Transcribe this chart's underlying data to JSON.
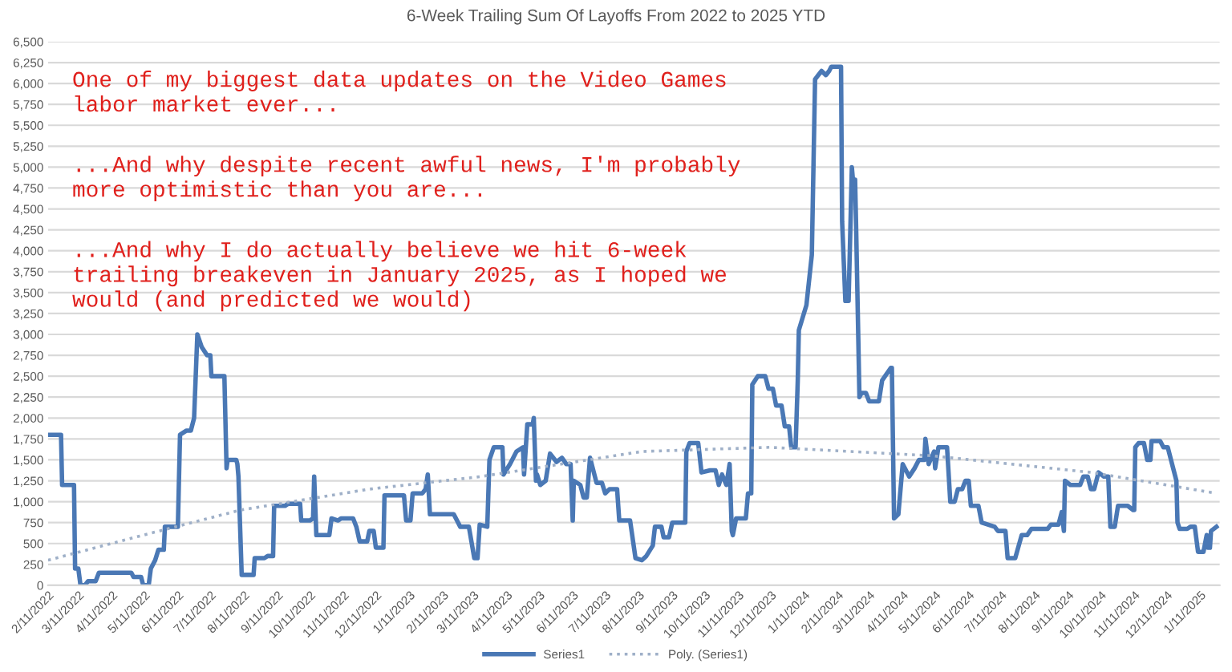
{
  "chart_data": {
    "type": "line",
    "title": "6-Week Trailing Sum Of Layoffs From 2022 to 2025 YTD",
    "annotations": [
      "One of my biggest data updates on the Video Games\nlabor market ever...",
      "...And why despite recent awful news, I'm probably\nmore optimistic than you are...",
      "...And why I do actually believe we hit 6-week\ntrailing breakeven in January 2025, as I hoped we\nwould (and predicted we would)"
    ],
    "series": [
      {
        "name": "Series1",
        "color": "#4a78b5",
        "line_style": "solid",
        "x": [
          "2022-02-11",
          "2022-02-23",
          "2022-02-24",
          "2022-03-07",
          "2022-03-08",
          "2022-03-11",
          "2022-03-13",
          "2022-03-17",
          "2022-03-20",
          "2022-03-27",
          "2022-03-30",
          "2022-04-29",
          "2022-05-01",
          "2022-05-08",
          "2022-05-10",
          "2022-05-15",
          "2022-05-17",
          "2022-05-21",
          "2022-05-24",
          "2022-05-29",
          "2022-05-30",
          "2022-06-11",
          "2022-06-13",
          "2022-06-19",
          "2022-06-23",
          "2022-06-26",
          "2022-06-29",
          "2022-07-03",
          "2022-07-08",
          "2022-07-11",
          "2022-07-12",
          "2022-07-24",
          "2022-07-26",
          "2022-07-27",
          "2022-08-04",
          "2022-08-05",
          "2022-08-06",
          "2022-08-09",
          "2022-08-20",
          "2022-08-21",
          "2022-08-30",
          "2022-09-02",
          "2022-09-07",
          "2022-09-08",
          "2022-09-18",
          "2022-09-21",
          "2022-10-02",
          "2022-10-03",
          "2022-10-11",
          "2022-10-14",
          "2022-10-15",
          "2022-10-17",
          "2022-10-29",
          "2022-10-31",
          "2022-11-06",
          "2022-11-09",
          "2022-11-20",
          "2022-11-23",
          "2022-11-26",
          "2022-12-03",
          "2022-12-05",
          "2022-12-09",
          "2022-12-11",
          "2022-12-18",
          "2022-12-19",
          "2023-01-06",
          "2023-01-08",
          "2023-01-12",
          "2023-01-14",
          "2023-01-23",
          "2023-01-26",
          "2023-01-28",
          "2023-01-30",
          "2023-02-21",
          "2023-02-27",
          "2023-03-07",
          "2023-03-12",
          "2023-03-15",
          "2023-03-17",
          "2023-03-24",
          "2023-03-26",
          "2023-03-30",
          "2023-04-07",
          "2023-04-08",
          "2023-04-14",
          "2023-04-20",
          "2023-04-26",
          "2023-04-27",
          "2023-04-30",
          "2023-05-05",
          "2023-05-06",
          "2023-05-08",
          "2023-05-09",
          "2023-05-12",
          "2023-05-17",
          "2023-05-21",
          "2023-05-27",
          "2023-06-01",
          "2023-06-05",
          "2023-06-09",
          "2023-06-11",
          "2023-06-12",
          "2023-06-18",
          "2023-06-21",
          "2023-06-24",
          "2023-06-27",
          "2023-07-03",
          "2023-07-08",
          "2023-07-11",
          "2023-07-15",
          "2023-07-22",
          "2023-07-24",
          "2023-08-03",
          "2023-08-08",
          "2023-08-14",
          "2023-08-18",
          "2023-08-24",
          "2023-08-26",
          "2023-09-01",
          "2023-09-03",
          "2023-09-08",
          "2023-09-11",
          "2023-09-23",
          "2023-09-24",
          "2023-09-27",
          "2023-10-05",
          "2023-10-08",
          "2023-10-16",
          "2023-10-21",
          "2023-10-24",
          "2023-10-27",
          "2023-10-31",
          "2023-11-03",
          "2023-11-05",
          "2023-11-06",
          "2023-11-09",
          "2023-11-18",
          "2023-11-20",
          "2023-11-23",
          "2023-11-24",
          "2023-11-29",
          "2023-12-06",
          "2023-12-09",
          "2023-12-13",
          "2023-12-16",
          "2023-12-21",
          "2023-12-24",
          "2023-12-28",
          "2023-12-30",
          "2024-01-03",
          "2024-01-05",
          "2024-01-06",
          "2024-01-13",
          "2024-01-18",
          "2024-01-21",
          "2024-01-27",
          "2024-01-31",
          "2024-02-03",
          "2024-02-05",
          "2024-02-14",
          "2024-02-15",
          "2024-02-18",
          "2024-02-21",
          "2024-02-24",
          "2024-02-25",
          "2024-02-27",
          "2024-02-28",
          "2024-03-02",
          "2024-03-04",
          "2024-03-08",
          "2024-03-11",
          "2024-03-20",
          "2024-03-23",
          "2024-03-31",
          "2024-04-01",
          "2024-04-03",
          "2024-04-07",
          "2024-04-11",
          "2024-04-17",
          "2024-04-22",
          "2024-04-26",
          "2024-05-01",
          "2024-05-02",
          "2024-05-05",
          "2024-05-10",
          "2024-05-11",
          "2024-05-14",
          "2024-05-22",
          "2024-05-25",
          "2024-05-29",
          "2024-06-01",
          "2024-06-05",
          "2024-06-08",
          "2024-06-11",
          "2024-06-13",
          "2024-06-20",
          "2024-06-23",
          "2024-07-05",
          "2024-07-08",
          "2024-07-11",
          "2024-07-15",
          "2024-07-17",
          "2024-07-24",
          "2024-07-30",
          "2024-08-04",
          "2024-08-08",
          "2024-08-23",
          "2024-08-26",
          "2024-09-02",
          "2024-09-05",
          "2024-09-07",
          "2024-09-08",
          "2024-09-13",
          "2024-09-22",
          "2024-09-25",
          "2024-09-29",
          "2024-10-02",
          "2024-10-05",
          "2024-10-09",
          "2024-10-14",
          "2024-10-18",
          "2024-10-20",
          "2024-10-24",
          "2024-10-27",
          "2024-11-05",
          "2024-11-10",
          "2024-11-11",
          "2024-11-12",
          "2024-11-15",
          "2024-11-20",
          "2024-11-23",
          "2024-11-26",
          "2024-11-27",
          "2024-12-05",
          "2024-12-08",
          "2024-12-12",
          "2024-12-15",
          "2024-12-20",
          "2024-12-21",
          "2024-12-23",
          "2024-12-30",
          "2025-01-02",
          "2025-01-06",
          "2025-01-09",
          "2025-01-14",
          "2025-01-17",
          "2025-01-18",
          "2025-01-20",
          "2025-01-21",
          "2025-01-26"
        ],
        "values": [
          1800,
          1800,
          1200,
          1200,
          200,
          200,
          0,
          0,
          50,
          50,
          150,
          150,
          100,
          100,
          0,
          0,
          200,
          300,
          425,
          425,
          700,
          700,
          1800,
          1850,
          1850,
          2000,
          3000,
          2850,
          2750,
          2750,
          2500,
          2500,
          1400,
          1500,
          1500,
          1450,
          1300,
          125,
          125,
          325,
          325,
          350,
          350,
          950,
          950,
          975,
          975,
          775,
          775,
          800,
          1300,
          600,
          600,
          800,
          775,
          800,
          800,
          700,
          525,
          525,
          650,
          650,
          450,
          450,
          1075,
          1075,
          775,
          775,
          1100,
          1100,
          1150,
          1325,
          850,
          850,
          700,
          700,
          325,
          325,
          725,
          700,
          1500,
          1650,
          1650,
          1325,
          1450,
          1600,
          1650,
          1325,
          1925,
          1925,
          2000,
          1250,
          1325,
          1200,
          1250,
          1575,
          1475,
          1525,
          1450,
          1450,
          775,
          1250,
          1200,
          1050,
          1050,
          1525,
          1225,
          1225,
          1100,
          1150,
          1150,
          775,
          775,
          325,
          300,
          350,
          475,
          700,
          700,
          575,
          575,
          750,
          750,
          1600,
          1700,
          1700,
          1350,
          1375,
          1375,
          1200,
          1325,
          1200,
          1450,
          650,
          600,
          800,
          800,
          1100,
          1100,
          2400,
          2500,
          2500,
          2350,
          2350,
          2150,
          2150,
          1900,
          1900,
          1650,
          1650,
          2450,
          3050,
          3350,
          3950,
          6050,
          6150,
          6100,
          6150,
          6200,
          6200,
          4350,
          3400,
          3400,
          5000,
          4850,
          4850,
          4250,
          2250,
          2300,
          2300,
          2200,
          2200,
          2450,
          2600,
          2600,
          800,
          850,
          1450,
          1300,
          1400,
          1500,
          1500,
          1750,
          1450,
          1600,
          1400,
          1650,
          1650,
          1000,
          1000,
          1150,
          1150,
          1250,
          1250,
          950,
          950,
          750,
          700,
          650,
          650,
          650,
          325,
          325,
          600,
          600,
          675,
          675,
          725,
          725,
          875,
          650,
          1250,
          1200,
          1200,
          1300,
          1300,
          1150,
          1150,
          1350,
          1300,
          1300,
          700,
          700,
          950,
          950,
          900,
          900,
          1650,
          1700,
          1700,
          1500,
          1500,
          1725,
          1725,
          1650,
          1650,
          1500,
          1250,
          750,
          675,
          675,
          700,
          700,
          400,
          400,
          600,
          450,
          450,
          650,
          700
        ]
      },
      {
        "name": "Poly. (Series1)",
        "color": "#9fb0c8",
        "line_style": "dotted",
        "x": [
          "2022-02-11",
          "2022-05-10",
          "2022-08-08",
          "2022-12-05",
          "2023-03-18",
          "2023-08-14",
          "2023-12-10",
          "2024-05-07",
          "2024-10-02",
          "2025-01-26"
        ],
        "values": [
          300,
          600,
          900,
          1150,
          1300,
          1600,
          1650,
          1550,
          1350,
          1100
        ]
      }
    ],
    "xlim": [
      "2022-02-11",
      "2025-01-29"
    ],
    "xticks": [
      {
        "value": "2022-02-11",
        "label": "2/11/2022"
      },
      {
        "value": "2022-03-11",
        "label": "3/11/2022"
      },
      {
        "value": "2022-04-11",
        "label": "4/11/2022"
      },
      {
        "value": "2022-05-11",
        "label": "5/11/2022"
      },
      {
        "value": "2022-06-11",
        "label": "6/11/2022"
      },
      {
        "value": "2022-07-11",
        "label": "7/11/2022"
      },
      {
        "value": "2022-08-11",
        "label": "8/11/2022"
      },
      {
        "value": "2022-09-11",
        "label": "9/11/2022"
      },
      {
        "value": "2022-10-11",
        "label": "10/11/2022"
      },
      {
        "value": "2022-11-11",
        "label": "11/11/2022"
      },
      {
        "value": "2022-12-11",
        "label": "12/11/2022"
      },
      {
        "value": "2023-01-11",
        "label": "1/11/2023"
      },
      {
        "value": "2023-02-11",
        "label": "2/11/2023"
      },
      {
        "value": "2023-03-11",
        "label": "3/11/2023"
      },
      {
        "value": "2023-04-11",
        "label": "4/11/2023"
      },
      {
        "value": "2023-05-11",
        "label": "5/11/2023"
      },
      {
        "value": "2023-06-11",
        "label": "6/11/2023"
      },
      {
        "value": "2023-07-11",
        "label": "7/11/2023"
      },
      {
        "value": "2023-08-11",
        "label": "8/11/2023"
      },
      {
        "value": "2023-09-11",
        "label": "9/11/2023"
      },
      {
        "value": "2023-10-11",
        "label": "10/11/2023"
      },
      {
        "value": "2023-11-11",
        "label": "11/11/2023"
      },
      {
        "value": "2023-12-11",
        "label": "12/11/2023"
      },
      {
        "value": "2024-01-11",
        "label": "1/11/2024"
      },
      {
        "value": "2024-02-11",
        "label": "2/11/2024"
      },
      {
        "value": "2024-03-11",
        "label": "3/11/2024"
      },
      {
        "value": "2024-04-11",
        "label": "4/11/2024"
      },
      {
        "value": "2024-05-11",
        "label": "5/11/2024"
      },
      {
        "value": "2024-06-11",
        "label": "6/11/2024"
      },
      {
        "value": "2024-07-11",
        "label": "7/11/2024"
      },
      {
        "value": "2024-08-11",
        "label": "8/11/2024"
      },
      {
        "value": "2024-09-11",
        "label": "9/11/2024"
      },
      {
        "value": "2024-10-11",
        "label": "10/11/2024"
      },
      {
        "value": "2024-11-11",
        "label": "11/11/2024"
      },
      {
        "value": "2024-12-11",
        "label": "12/11/2024"
      },
      {
        "value": "2025-01-11",
        "label": "1/11/2025"
      }
    ],
    "ylim": [
      0,
      6500
    ],
    "yticks": [
      0,
      250,
      500,
      750,
      {
        "value": 1000,
        "label": "1,000"
      },
      {
        "value": 1250,
        "label": "1,250"
      },
      {
        "value": 1500,
        "label": "1,500"
      },
      {
        "value": 1750,
        "label": "1,750"
      },
      {
        "value": 2000,
        "label": "2,000"
      },
      {
        "value": 2250,
        "label": "2,250"
      },
      {
        "value": 2500,
        "label": "2,500"
      },
      {
        "value": 2750,
        "label": "2,750"
      },
      {
        "value": 3000,
        "label": "3,000"
      },
      {
        "value": 3250,
        "label": "3,250"
      },
      {
        "value": 3500,
        "label": "3,500"
      },
      {
        "value": 3750,
        "label": "3,750"
      },
      {
        "value": 4000,
        "label": "4,000"
      },
      {
        "value": 4250,
        "label": "4,250"
      },
      {
        "value": 4500,
        "label": "4,500"
      },
      {
        "value": 4750,
        "label": "4,750"
      },
      {
        "value": 5000,
        "label": "5,000"
      },
      {
        "value": 5250,
        "label": "5,250"
      },
      {
        "value": 5500,
        "label": "5,500"
      },
      {
        "value": 5750,
        "label": "5,750"
      },
      {
        "value": 6000,
        "label": "6,000"
      },
      {
        "value": 6250,
        "label": "6,250"
      },
      {
        "value": 6500,
        "label": "6,500"
      }
    ],
    "grid": "y",
    "legend": "bottom",
    "marker": "none"
  }
}
